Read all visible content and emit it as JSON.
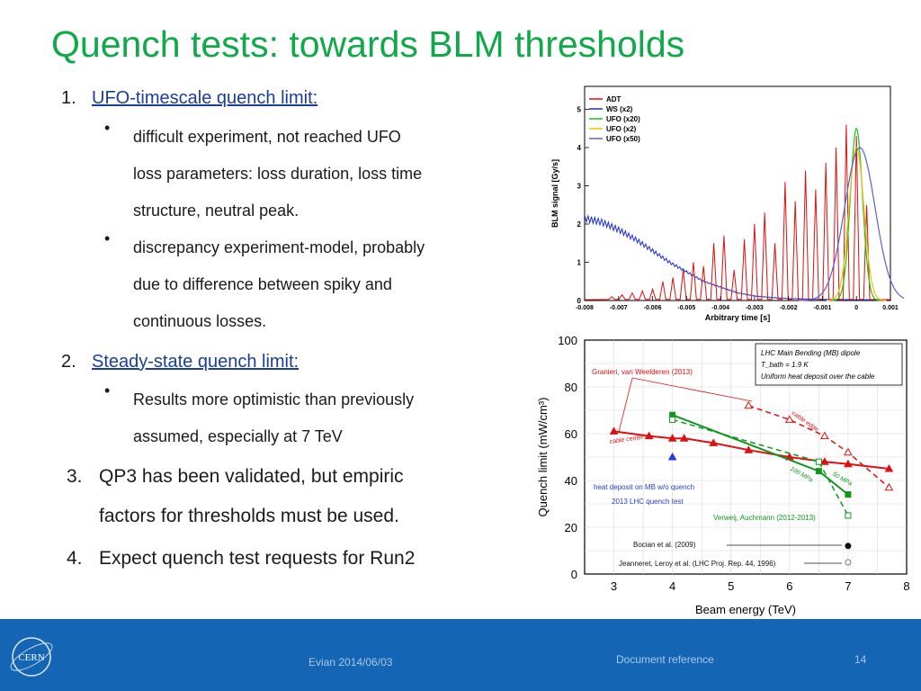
{
  "slide": {
    "title": "Quench tests: towards BLM thresholds"
  },
  "items": [
    {
      "num": "1.",
      "label": "UFO-timescale quench limit:"
    },
    {
      "num": "2.",
      "label": "Steady-state quench limit:"
    },
    {
      "num": "3.",
      "label": "QP3 has been validated, but empiric",
      "label2": "factors for thresholds must be used."
    },
    {
      "num": "4.",
      "label": "Expect quench test requests for Run2"
    }
  ],
  "bullets": [
    {
      "lines": [
        "difficult experiment, not reached UFO",
        "loss parameters: loss duration, loss time",
        "structure, neutral peak."
      ]
    },
    {
      "lines": [
        "discrepancy experiment-model, probably",
        "due to difference between spiky and",
        "continuous losses."
      ]
    },
    {
      "lines": [
        "Results more optimistic than previously",
        "assumed, especially at 7 TeV"
      ]
    }
  ],
  "chart_data": [
    {
      "type": "line",
      "xlabel": "Arbitrary time [s]",
      "ylabel": "BLM signal [Gy/s]",
      "xlim": [
        -0.008,
        0.001
      ],
      "ylim": [
        0,
        5.6
      ],
      "x_ticks": [
        "-0.008",
        "-0.007",
        "-0.006",
        "-0.005",
        "-0.004",
        "-0.003",
        "-0.002",
        "-0.001",
        "0",
        "0.001"
      ],
      "y_ticks": [
        "0",
        "1",
        "2",
        "3",
        "4",
        "5"
      ],
      "legend_position": "top-left",
      "series": [
        {
          "name": "ADT",
          "color": "#e01010"
        },
        {
          "name": "WS (x2)",
          "color": "#1f2fd0"
        },
        {
          "name": "UFO (x20)",
          "color": "#19c619"
        },
        {
          "name": "UFO (x2)",
          "color": "#f0c000"
        },
        {
          "name": "UFO (x50)",
          "color": "#5a60d8"
        }
      ],
      "adt_spikes": {
        "x": [
          -0.0072,
          -0.0069,
          -0.0066,
          -0.0063,
          -0.006,
          -0.0057,
          -0.0054,
          -0.0051,
          -0.0048,
          -0.0045,
          -0.0042,
          -0.0039,
          -0.0036,
          -0.0033,
          -0.003,
          -0.0027,
          -0.0024,
          -0.0021,
          -0.0018,
          -0.0015,
          -0.0012,
          -0.0009,
          -0.0006,
          -0.0003,
          0.0,
          0.0003
        ],
        "y": [
          0.1,
          0.15,
          0.2,
          0.25,
          0.3,
          0.5,
          0.6,
          0.8,
          1.0,
          0.9,
          1.5,
          1.7,
          0.8,
          1.6,
          2.0,
          2.3,
          1.5,
          3.1,
          2.6,
          3.4,
          2.9,
          3.6,
          4.0,
          4.6,
          4.3,
          2.5
        ]
      },
      "ws_curve": {
        "x": [
          -0.008,
          -0.0075,
          -0.007,
          -0.0065,
          -0.006,
          -0.0055,
          -0.005,
          -0.0045,
          -0.004,
          -0.0035,
          -0.003,
          -0.0025,
          -0.002,
          -0.001,
          0.0,
          0.001
        ],
        "y": [
          2.15,
          2.05,
          1.85,
          1.6,
          1.3,
          1.0,
          0.75,
          0.5,
          0.35,
          0.2,
          0.12,
          0.08,
          0.05,
          0.03,
          0.02,
          0.02
        ]
      },
      "ufo_peaks": [
        {
          "name": "UFO (x20)",
          "center": 0.0,
          "height": 4.5,
          "width": 0.00018
        },
        {
          "name": "UFO (x2)",
          "center": 0.0,
          "height": 4.0,
          "width": 0.00022
        },
        {
          "name": "UFO (x50)",
          "center": 0.0001,
          "height": 4.0,
          "width": 0.00045
        }
      ]
    },
    {
      "type": "line",
      "xlabel": "Beam energy (TeV)",
      "ylabel": "Quench limit (mW/cm³)",
      "xlim": [
        2.5,
        8
      ],
      "ylim": [
        0,
        100
      ],
      "x_ticks": [
        "3",
        "4",
        "5",
        "6",
        "7",
        "8"
      ],
      "y_ticks": [
        "0",
        "20",
        "40",
        "60",
        "80",
        "100"
      ],
      "annotation_box": [
        "LHC Main Bending (MB) dipole",
        "T_bath = 1.9 K",
        "Uniform heat deposit over the cable"
      ],
      "series": [
        {
          "name": "cable center",
          "color": "#e01010",
          "x": [
            3.0,
            3.6,
            4.0,
            4.2,
            4.7,
            5.3,
            6.0,
            6.6,
            7.0,
            7.7
          ],
          "y": [
            61,
            59,
            58,
            58,
            56,
            53,
            50,
            48,
            47,
            45
          ]
        },
        {
          "name": "cable edge",
          "color": "#e01010",
          "dashed": true,
          "x": [
            5.3,
            6.0,
            6.6,
            7.0,
            7.7
          ],
          "y": [
            72,
            66,
            59,
            52,
            37
          ]
        },
        {
          "name": "100 MPa",
          "color": "#10961e",
          "x": [
            4.0,
            6.5,
            7.0
          ],
          "y": [
            68,
            44,
            34
          ]
        },
        {
          "name": "50 MPa",
          "color": "#10961e",
          "dashed": true,
          "x": [
            4.0,
            6.5,
            7.0
          ],
          "y": [
            66,
            48,
            25
          ]
        },
        {
          "name": "2013 LHC quench test",
          "color": "#1f3fd8",
          "x": [
            4.0
          ],
          "y": [
            50
          ]
        },
        {
          "name": "Bocian et al. (2009)",
          "color": "#111111",
          "x": [
            7.0
          ],
          "y": [
            12
          ]
        },
        {
          "name": "Jeanneret, Leroy et al. (LHC Proj. Rep. 44, 1996)",
          "color": "#777777",
          "x": [
            7.0
          ],
          "y": [
            5
          ]
        }
      ],
      "labels": {
        "granieri": "Granieri, van Weelderen (2013)",
        "cable_center": "cable center",
        "cable_edge": "cable edge",
        "mpa100": "100 MPa",
        "mpa50": "50 MPa",
        "heat_deposit": "heat deposit on MB w/o quench",
        "quench_test": "2013 LHC quench test",
        "verweij": "Verweij, Auchmann (2012-2013)",
        "bocian": "Bocian et al. (2009)",
        "jeanneret": "Jeanneret, Leroy et al. (LHC Proj. Rep. 44, 1996)"
      }
    }
  ],
  "footer": {
    "location_date": "Evian 2014/06/03",
    "doc_ref": "Document reference",
    "page_number": "14",
    "logo_text": "CERN"
  }
}
